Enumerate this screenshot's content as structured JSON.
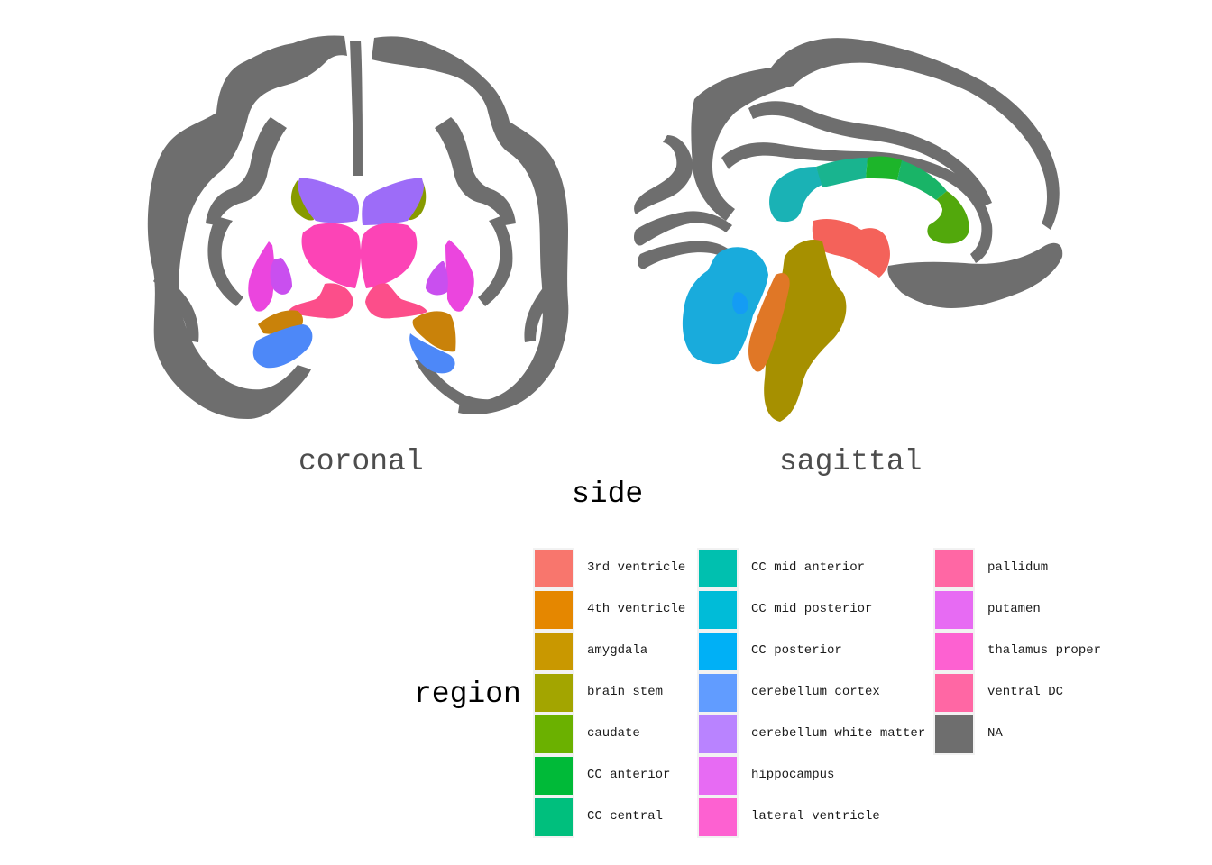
{
  "facets": {
    "left": "coronal",
    "right": "sagittal"
  },
  "side_title": "side",
  "legend": {
    "title": "region",
    "columns": [
      [
        {
          "label": "3rd ventricle",
          "color": "#F8766D"
        },
        {
          "label": "4th ventricle",
          "color": "#E58700"
        },
        {
          "label": "amygdala",
          "color": "#C99800"
        },
        {
          "label": "brain stem",
          "color": "#A3A500"
        },
        {
          "label": "caudate",
          "color": "#6BB100"
        },
        {
          "label": "CC anterior",
          "color": "#00BA38"
        },
        {
          "label": "CC central",
          "color": "#00BF7D"
        }
      ],
      [
        {
          "label": "CC mid anterior",
          "color": "#00C0AF"
        },
        {
          "label": "CC mid posterior",
          "color": "#00BCD8"
        },
        {
          "label": "CC posterior",
          "color": "#00B0F6"
        },
        {
          "label": "cerebellum cortex",
          "color": "#619CFF"
        },
        {
          "label": "cerebellum white matter",
          "color": "#B983FF"
        },
        {
          "label": "hippocampus",
          "color": "#E76BF3"
        },
        {
          "label": "lateral ventricle",
          "color": "#FD61D1"
        }
      ],
      [
        {
          "label": "pallidum",
          "color": "#FF67A4"
        },
        {
          "label": "putamen",
          "color": "#E76BF3"
        },
        {
          "label": "thalamus proper",
          "color": "#FD61D1"
        },
        {
          "label": "ventral DC",
          "color": "#FF67A4"
        },
        {
          "label": "NA",
          "color": "#6E6E6E"
        }
      ]
    ]
  },
  "colors": {
    "cortex": "#6E6E6E",
    "3rd ventricle": "#F4625A",
    "4th ventricle": "#E07726",
    "amygdala": "#C9820A",
    "brain stem": "#A69000",
    "caudate": "#879A00",
    "CC anterior": "#52A80C",
    "CC central": "#1DB52A",
    "CC mid anterior": "#19B467",
    "CC mid posterior": "#19B48F",
    "CC posterior": "#1AB2B5",
    "cerebellum cortex": "#19ABDC",
    "cerebellum white matter": "#149CF4",
    "hippocampus": "#4D88F8",
    "lateral ventricle": "#9D6CF8",
    "pallidum": "#C94FEF",
    "putamen": "#EB45DE",
    "thalamus proper": "#FC44B6",
    "ventral DC": "#FC4E8A",
    "NA": "#6E6E6E"
  }
}
